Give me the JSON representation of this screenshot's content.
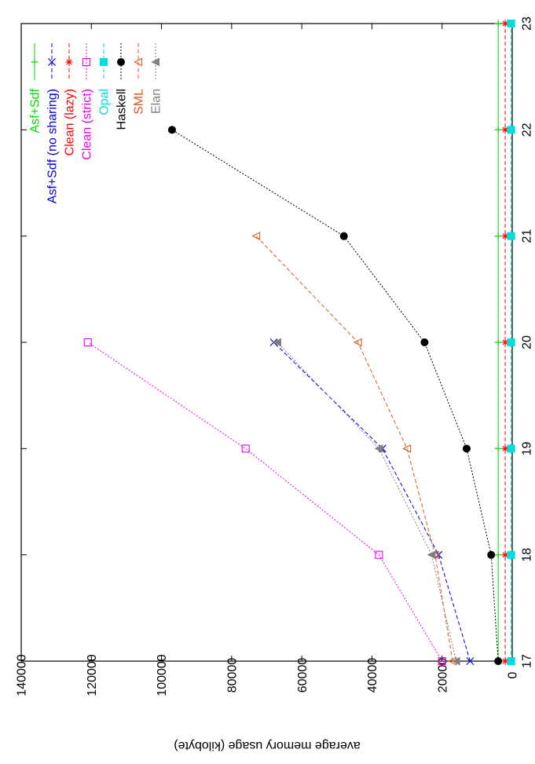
{
  "chart_data": {
    "type": "line",
    "orientation": "rotated-90-clockwise",
    "xlabel": "",
    "ylabel": "average memory usage (kilobyte)",
    "x_ticks": [
      "17",
      "18",
      "19",
      "20",
      "21",
      "22",
      "23"
    ],
    "y_ticks": [
      "0",
      "20000",
      "40000",
      "60000",
      "80000",
      "100000",
      "120000",
      "140000"
    ],
    "xlim": [
      17,
      23
    ],
    "ylim": [
      0,
      140000
    ],
    "grid": false,
    "legend_position": "top-left",
    "series": [
      {
        "name": "Asf+Sdf",
        "color": "#00dd00",
        "marker": "plus",
        "dash": "solid",
        "points": [
          [
            17,
            4000
          ],
          [
            18,
            4000
          ],
          [
            19,
            4000
          ],
          [
            20,
            4000
          ],
          [
            21,
            4000
          ],
          [
            22,
            4000
          ],
          [
            23,
            4000
          ]
        ]
      },
      {
        "name": "Asf+Sdf (no sharing)",
        "color": "#0000dd",
        "marker": "x",
        "dash": "dashed",
        "points": [
          [
            17,
            12000
          ],
          [
            18,
            21000
          ],
          [
            19,
            37000
          ],
          [
            20,
            68000
          ]
        ]
      },
      {
        "name": "Clean (lazy)",
        "color": "#ff0000",
        "marker": "star",
        "dash": "dashed",
        "points": [
          [
            17,
            2000
          ],
          [
            18,
            2000
          ],
          [
            19,
            2000
          ],
          [
            20,
            2000
          ],
          [
            21,
            2000
          ],
          [
            22,
            2000
          ],
          [
            23,
            2000
          ]
        ]
      },
      {
        "name": "Clean (strict)",
        "color": "#ee00ee",
        "marker": "square-open",
        "dash": "dotted",
        "points": [
          [
            17,
            20000
          ],
          [
            18,
            38000
          ],
          [
            19,
            76000
          ],
          [
            20,
            121000
          ]
        ]
      },
      {
        "name": "Opal",
        "color": "#00dddd",
        "marker": "square-filled",
        "dash": "dashed",
        "points": [
          [
            17,
            300
          ],
          [
            18,
            300
          ],
          [
            19,
            300
          ],
          [
            20,
            300
          ],
          [
            21,
            300
          ],
          [
            22,
            300
          ],
          [
            23,
            300
          ]
        ]
      },
      {
        "name": "Haskell",
        "color": "#000000",
        "marker": "circle-filled",
        "dash": "dotted",
        "points": [
          [
            17,
            4000
          ],
          [
            18,
            6000
          ],
          [
            19,
            13000
          ],
          [
            20,
            25000
          ],
          [
            21,
            48000
          ],
          [
            22,
            97000
          ]
        ]
      },
      {
        "name": "SML",
        "color": "#e05a1a",
        "marker": "triangle-open",
        "dash": "dashed",
        "points": [
          [
            17,
            17000
          ],
          [
            18,
            22000
          ],
          [
            19,
            30000
          ],
          [
            20,
            44000
          ],
          [
            21,
            73000
          ]
        ]
      },
      {
        "name": "Elan",
        "color": "#808080",
        "marker": "triangle-filled",
        "dash": "dotted",
        "points": [
          [
            17,
            16000
          ],
          [
            18,
            23000
          ],
          [
            19,
            38000
          ],
          [
            20,
            67000
          ]
        ]
      }
    ]
  }
}
